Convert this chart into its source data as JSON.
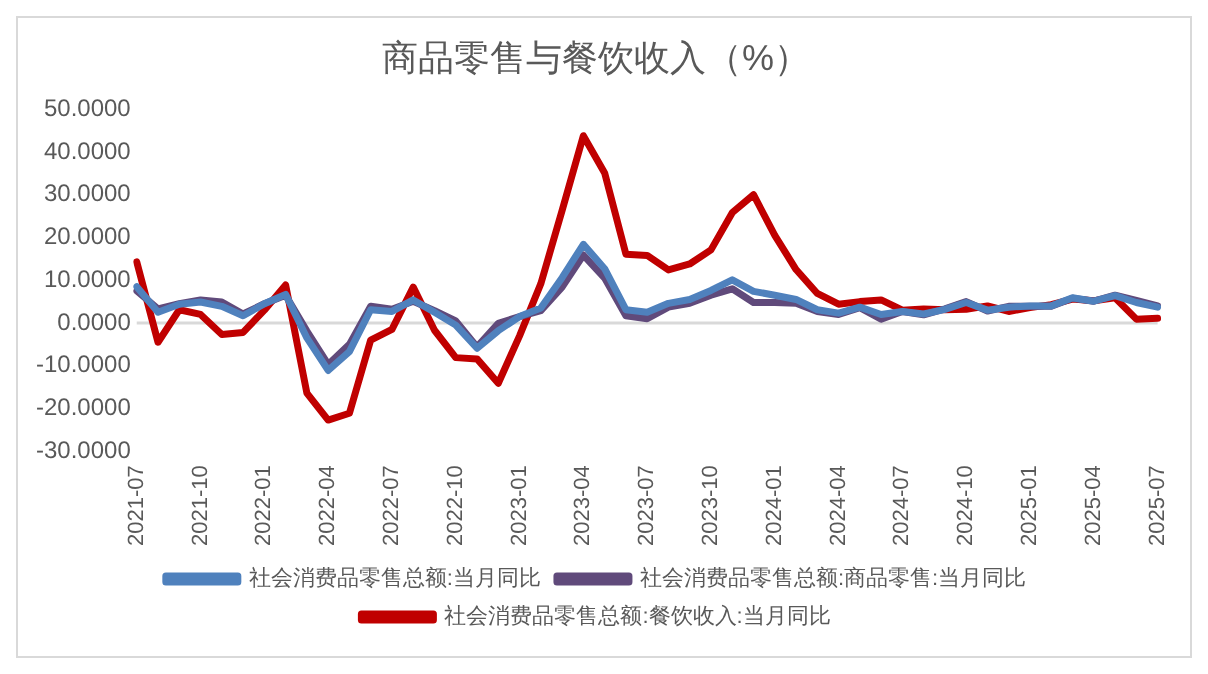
{
  "chart_data": {
    "type": "line",
    "title": "商品零售与餐饮收入（%）",
    "categories": [
      "2021-07",
      null,
      null,
      "2021-10",
      null,
      null,
      "2022-01",
      null,
      null,
      "2022-04",
      null,
      null,
      "2022-07",
      null,
      null,
      "2022-10",
      null,
      null,
      "2023-01",
      null,
      null,
      "2023-04",
      null,
      null,
      "2023-07",
      null,
      null,
      "2023-10",
      null,
      null,
      "2024-01",
      null,
      null,
      "2024-04",
      null,
      null,
      "2024-07",
      null,
      null,
      "2024-10",
      null,
      null,
      "2025-01",
      null,
      null,
      "2025-04",
      null,
      null,
      "2025-07"
    ],
    "series": [
      {
        "name": "社会消费品零售总额:当月同比",
        "color": "#4f81bd",
        "values": [
          8.5,
          2.5,
          4.4,
          4.9,
          3.9,
          1.7,
          4.5,
          6.7,
          -3.5,
          -11.1,
          -6.7,
          3.1,
          2.7,
          5.4,
          2.5,
          -0.5,
          -5.9,
          -1.8,
          1.5,
          3.5,
          10.6,
          18.4,
          12.7,
          3.1,
          2.5,
          4.6,
          5.5,
          7.6,
          10.1,
          7.4,
          6.5,
          5.5,
          3.1,
          2.3,
          3.7,
          2.0,
          2.7,
          2.1,
          3.2,
          4.8,
          3.0,
          3.7,
          4.0,
          4.0,
          5.9,
          5.1,
          6.4,
          4.8,
          3.7
        ]
      },
      {
        "name": "社会消费品零售总额:商品零售:当月同比",
        "color": "#604a7b",
        "values": [
          7.5,
          3.3,
          4.5,
          5.4,
          4.9,
          2.1,
          4.5,
          6.5,
          -1.9,
          -9.7,
          -5.0,
          3.9,
          3.2,
          5.1,
          2.9,
          0.5,
          -5.6,
          -0.1,
          1.5,
          2.9,
          8.4,
          15.9,
          10.5,
          1.7,
          1.0,
          3.7,
          4.6,
          6.5,
          8.0,
          4.8,
          4.8,
          4.6,
          2.7,
          2.0,
          3.6,
          0.9,
          2.7,
          1.9,
          3.3,
          5.0,
          2.8,
          3.9,
          3.9,
          3.9,
          5.8,
          5.1,
          6.5,
          5.3,
          4.0
        ]
      },
      {
        "name": "社会消费品零售总额:餐饮收入:当月同比",
        "color": "#c00000",
        "values": [
          14.3,
          -4.5,
          3.1,
          2.0,
          -2.7,
          -2.2,
          3.0,
          8.9,
          -16.4,
          -22.7,
          -21.1,
          -4.0,
          -1.5,
          8.4,
          -1.7,
          -8.1,
          -8.4,
          -14.1,
          -3.0,
          9.2,
          26.3,
          43.8,
          35.1,
          16.1,
          15.8,
          12.4,
          13.8,
          17.1,
          25.8,
          30.0,
          20.5,
          12.5,
          6.9,
          4.4,
          5.0,
          5.4,
          3.0,
          3.3,
          3.1,
          3.2,
          4.0,
          2.7,
          3.6,
          4.3,
          5.6,
          5.2,
          5.9,
          0.9,
          1.1
        ]
      }
    ],
    "ylim": [
      -30,
      50
    ],
    "yticks": [
      {
        "value": -30,
        "label": "-30.0000"
      },
      {
        "value": -20,
        "label": "-20.0000"
      },
      {
        "value": -10,
        "label": "-10.0000"
      },
      {
        "value": 0,
        "label": "0.0000"
      },
      {
        "value": 10,
        "label": "10.0000"
      },
      {
        "value": 20,
        "label": "20.0000"
      },
      {
        "value": 30,
        "label": "30.0000"
      },
      {
        "value": 40,
        "label": "40.0000"
      },
      {
        "value": 50,
        "label": "50.0000"
      }
    ],
    "ref_lines": [
      {
        "axis": "y",
        "value": 0,
        "color": "#d9d9d9"
      }
    ],
    "grid": false,
    "legend": "bottom",
    "marker": "none",
    "line_style": "solid"
  }
}
